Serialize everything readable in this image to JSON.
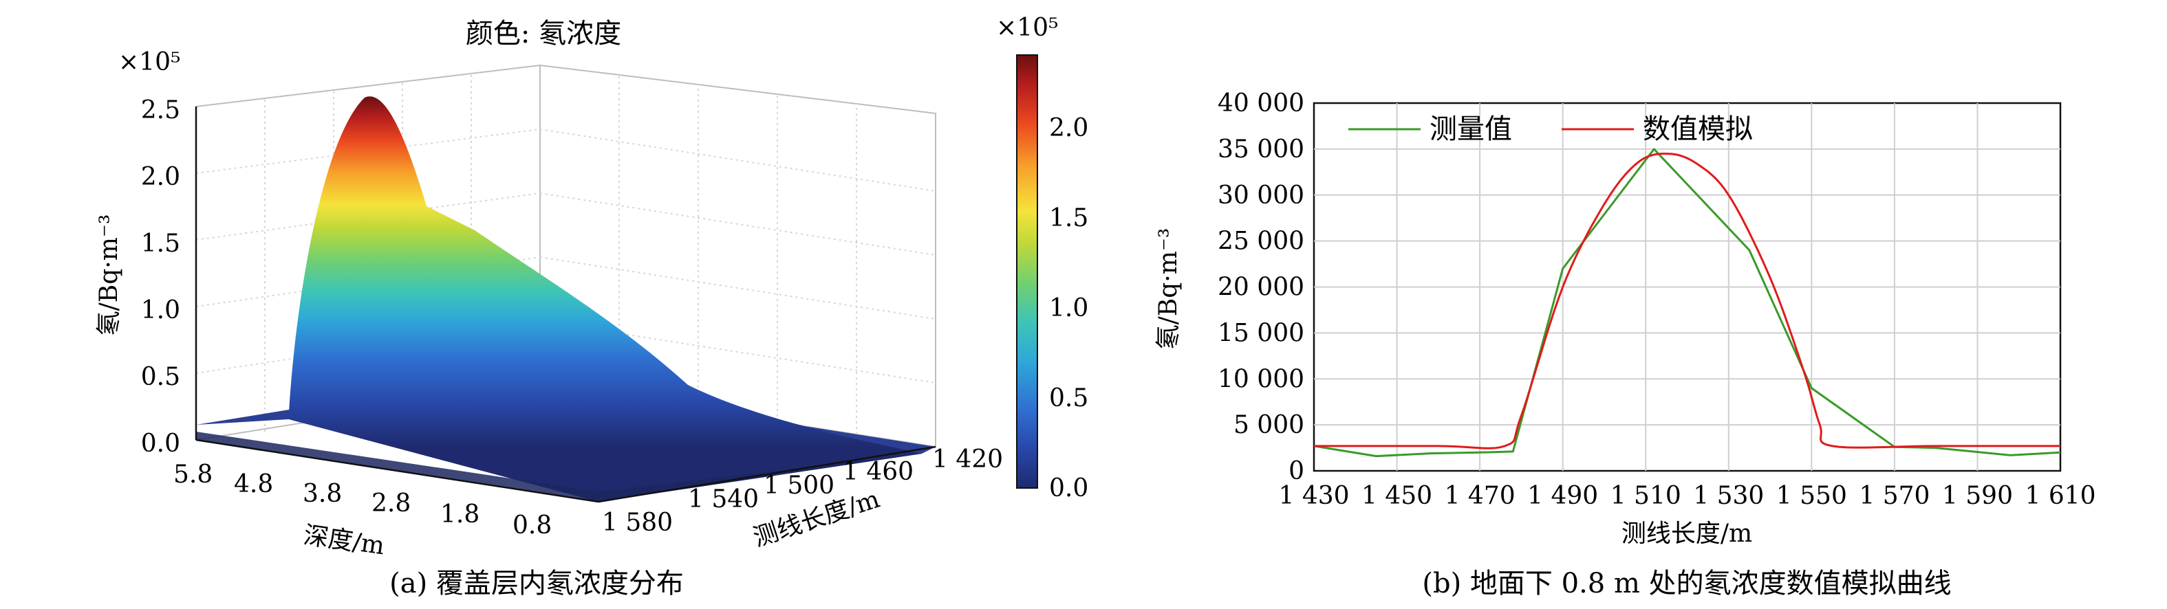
{
  "panel_a": {
    "caption": "(a) 覆盖层内氡浓度分布",
    "title": "颜色: 氡浓度",
    "zlabel": "氡/Bq·m⁻³",
    "zexp": "×10⁵",
    "xlabel": "深度/m",
    "ylabel": "测线长度/m",
    "depth_ticks": [
      "5.8",
      "4.8",
      "3.8",
      "2.8",
      "1.8",
      "0.8"
    ],
    "length_ticks": [
      "1 580",
      "1 540",
      "1 500",
      "1 460",
      "1 420"
    ],
    "z_ticks": [
      "0.0",
      "0.5",
      "1.0",
      "1.5",
      "2.0",
      "2.5"
    ],
    "colorbar": {
      "exp": "×10⁵",
      "ticks": [
        "0.0",
        "0.5",
        "1.0",
        "1.5",
        "2.0"
      ],
      "colors": [
        "#1f2a6e",
        "#2847a8",
        "#2f6fd1",
        "#2fa6d8",
        "#3cc4b8",
        "#6fcf73",
        "#bcd83a",
        "#f5e33a",
        "#f7a22b",
        "#ec4a1f",
        "#b61e1e",
        "#6a1010"
      ]
    }
  },
  "chart_data": {
    "type": "line",
    "title": "",
    "caption": "(b) 地面下 0.8 m 处的氡浓度数值模拟曲线",
    "xlabel": "测线长度/m",
    "ylabel": "氡/Bq·m⁻³",
    "xlim": [
      1430,
      1610
    ],
    "ylim": [
      0,
      40000
    ],
    "x_ticks": [
      "1 430",
      "1 450",
      "1 470",
      "1 490",
      "1 510",
      "1 530",
      "1 550",
      "1 570",
      "1 590",
      "1 610"
    ],
    "y_ticks": [
      "0",
      "5 000",
      "10 000",
      "15 000",
      "20 000",
      "25 000",
      "30 000",
      "35 000",
      "40 000"
    ],
    "grid": true,
    "legend_position": "top-left",
    "series": [
      {
        "name": "测量值",
        "color": "#3a9a2a",
        "x": [
          1430,
          1445,
          1458,
          1470,
          1478,
          1490,
          1512,
          1535,
          1550,
          1570,
          1580,
          1598,
          1610
        ],
        "y": [
          2700,
          1600,
          1900,
          2000,
          2100,
          22000,
          35000,
          24000,
          9000,
          2600,
          2500,
          1700,
          2000
        ]
      },
      {
        "name": "数值模拟",
        "color": "#e01b1b",
        "x": [
          1430,
          1460,
          1476,
          1480,
          1490,
          1500,
          1508,
          1515,
          1522,
          1530,
          1540,
          1548,
          1552,
          1555,
          1580,
          1610
        ],
        "y": [
          2700,
          2700,
          2700,
          6000,
          20000,
          29000,
          33500,
          34500,
          33500,
          30000,
          21000,
          11000,
          5000,
          2700,
          2700,
          2700
        ]
      }
    ]
  }
}
